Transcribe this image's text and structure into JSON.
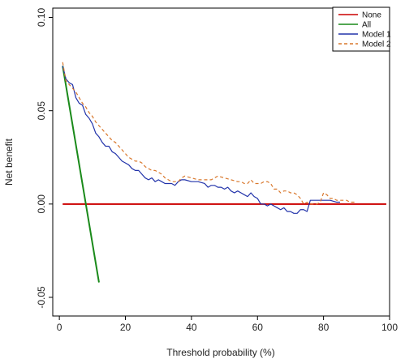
{
  "chart_data": {
    "type": "line",
    "title": "",
    "xlabel": "Threshold probability (%)",
    "ylabel": "Net benefit",
    "xlim": [
      -2,
      100
    ],
    "ylim": [
      -0.06,
      0.105
    ],
    "x_ticks": [
      0,
      20,
      40,
      60,
      80,
      100
    ],
    "y_ticks": [
      -0.05,
      0.0,
      0.05,
      0.1
    ],
    "x_tick_labels": [
      "0",
      "20",
      "40",
      "60",
      "80",
      "100"
    ],
    "y_tick_labels": [
      "-0.05",
      "0.00",
      "0.05",
      "0.10"
    ],
    "grid": false,
    "legend_position": "top-right",
    "series": [
      {
        "name": "None",
        "color": "#cc0000",
        "dash": "solid",
        "points": [
          [
            1,
            0.0
          ],
          [
            99,
            0.0
          ]
        ]
      },
      {
        "name": "All",
        "color": "#1a8a1a",
        "dash": "solid",
        "points": [
          [
            1,
            0.074
          ],
          [
            12,
            -0.042
          ]
        ]
      },
      {
        "name": "Model 1",
        "color": "#2233aa",
        "dash": "solid",
        "points": [
          [
            1,
            0.074
          ],
          [
            2,
            0.067
          ],
          [
            3,
            0.065
          ],
          [
            4,
            0.064
          ],
          [
            5,
            0.057
          ],
          [
            6,
            0.054
          ],
          [
            7,
            0.053
          ],
          [
            8,
            0.048
          ],
          [
            9,
            0.046
          ],
          [
            10,
            0.043
          ],
          [
            11,
            0.038
          ],
          [
            12,
            0.036
          ],
          [
            13,
            0.033
          ],
          [
            14,
            0.031
          ],
          [
            15,
            0.031
          ],
          [
            16,
            0.028
          ],
          [
            17,
            0.027
          ],
          [
            18,
            0.025
          ],
          [
            19,
            0.023
          ],
          [
            20,
            0.022
          ],
          [
            21,
            0.021
          ],
          [
            22,
            0.019
          ],
          [
            23,
            0.018
          ],
          [
            24,
            0.018
          ],
          [
            25,
            0.016
          ],
          [
            26,
            0.014
          ],
          [
            27,
            0.013
          ],
          [
            28,
            0.014
          ],
          [
            29,
            0.012
          ],
          [
            30,
            0.013
          ],
          [
            31,
            0.012
          ],
          [
            32,
            0.011
          ],
          [
            33,
            0.011
          ],
          [
            34,
            0.011
          ],
          [
            35,
            0.01
          ],
          [
            36,
            0.012
          ],
          [
            37,
            0.013
          ],
          [
            38,
            0.013
          ],
          [
            40,
            0.012
          ],
          [
            42,
            0.012
          ],
          [
            44,
            0.011
          ],
          [
            45,
            0.009
          ],
          [
            46,
            0.01
          ],
          [
            47,
            0.01
          ],
          [
            48,
            0.009
          ],
          [
            49,
            0.009
          ],
          [
            50,
            0.008
          ],
          [
            51,
            0.009
          ],
          [
            52,
            0.007
          ],
          [
            53,
            0.006
          ],
          [
            54,
            0.007
          ],
          [
            55,
            0.006
          ],
          [
            56,
            0.005
          ],
          [
            57,
            0.004
          ],
          [
            58,
            0.006
          ],
          [
            59,
            0.004
          ],
          [
            60,
            0.003
          ],
          [
            61,
            0.0
          ],
          [
            62,
            0.0
          ],
          [
            63,
            -0.001
          ],
          [
            64,
            0.0
          ],
          [
            65,
            -0.001
          ],
          [
            66,
            -0.002
          ],
          [
            67,
            -0.003
          ],
          [
            68,
            -0.002
          ],
          [
            69,
            -0.004
          ],
          [
            70,
            -0.004
          ],
          [
            71,
            -0.005
          ],
          [
            72,
            -0.005
          ],
          [
            73,
            -0.003
          ],
          [
            74,
            -0.003
          ],
          [
            75,
            -0.004
          ],
          [
            76,
            0.002
          ],
          [
            77,
            0.002
          ],
          [
            78,
            0.002
          ],
          [
            80,
            0.002
          ],
          [
            82,
            0.002
          ],
          [
            84,
            0.001
          ],
          [
            85,
            0.001
          ]
        ]
      },
      {
        "name": "Model 2",
        "color": "#d9782d",
        "dash": "dashed",
        "points": [
          [
            1,
            0.076
          ],
          [
            2,
            0.066
          ],
          [
            3,
            0.064
          ],
          [
            4,
            0.062
          ],
          [
            5,
            0.06
          ],
          [
            6,
            0.057
          ],
          [
            7,
            0.054
          ],
          [
            8,
            0.052
          ],
          [
            9,
            0.049
          ],
          [
            10,
            0.047
          ],
          [
            11,
            0.044
          ],
          [
            12,
            0.042
          ],
          [
            13,
            0.04
          ],
          [
            14,
            0.038
          ],
          [
            15,
            0.036
          ],
          [
            16,
            0.034
          ],
          [
            17,
            0.033
          ],
          [
            18,
            0.031
          ],
          [
            19,
            0.029
          ],
          [
            20,
            0.027
          ],
          [
            21,
            0.025
          ],
          [
            22,
            0.024
          ],
          [
            23,
            0.023
          ],
          [
            24,
            0.023
          ],
          [
            25,
            0.022
          ],
          [
            26,
            0.02
          ],
          [
            27,
            0.019
          ],
          [
            28,
            0.018
          ],
          [
            29,
            0.018
          ],
          [
            30,
            0.017
          ],
          [
            31,
            0.016
          ],
          [
            32,
            0.014
          ],
          [
            33,
            0.013
          ],
          [
            34,
            0.012
          ],
          [
            35,
            0.012
          ],
          [
            36,
            0.012
          ],
          [
            37,
            0.014
          ],
          [
            38,
            0.015
          ],
          [
            40,
            0.014
          ],
          [
            42,
            0.013
          ],
          [
            44,
            0.013
          ],
          [
            46,
            0.013
          ],
          [
            48,
            0.015
          ],
          [
            50,
            0.014
          ],
          [
            52,
            0.013
          ],
          [
            54,
            0.012
          ],
          [
            55,
            0.012
          ],
          [
            56,
            0.011
          ],
          [
            57,
            0.011
          ],
          [
            58,
            0.013
          ],
          [
            59,
            0.011
          ],
          [
            60,
            0.011
          ],
          [
            61,
            0.011
          ],
          [
            62,
            0.012
          ],
          [
            63,
            0.012
          ],
          [
            64,
            0.011
          ],
          [
            65,
            0.008
          ],
          [
            66,
            0.008
          ],
          [
            67,
            0.006
          ],
          [
            68,
            0.007
          ],
          [
            69,
            0.007
          ],
          [
            70,
            0.006
          ],
          [
            71,
            0.006
          ],
          [
            72,
            0.005
          ],
          [
            73,
            0.003
          ],
          [
            74,
            0.0
          ],
          [
            75,
            0.001
          ],
          [
            76,
            0.0
          ],
          [
            77,
            0.0
          ],
          [
            78,
            0.0
          ],
          [
            79,
            0.001
          ],
          [
            80,
            0.006
          ],
          [
            81,
            0.005
          ],
          [
            82,
            0.003
          ],
          [
            83,
            0.003
          ],
          [
            84,
            0.002
          ],
          [
            85,
            0.002
          ],
          [
            86,
            0.002
          ],
          [
            87,
            0.002
          ],
          [
            88,
            0.001
          ],
          [
            89,
            0.001
          ],
          [
            90,
            0.001
          ]
        ]
      }
    ]
  }
}
